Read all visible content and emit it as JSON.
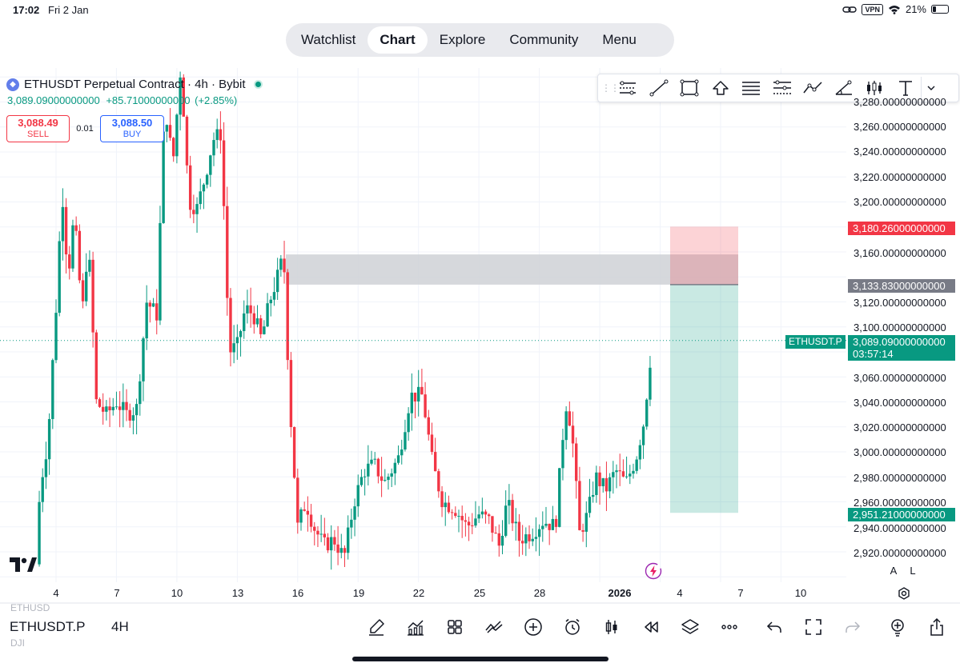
{
  "status_bar": {
    "time": "17:02",
    "date": "Fri 2 Jan",
    "vpn": "VPN",
    "battery": "21%"
  },
  "nav": {
    "tabs": [
      {
        "label": "Watchlist"
      },
      {
        "label": "Chart",
        "active": true
      },
      {
        "label": "Explore"
      },
      {
        "label": "Community"
      },
      {
        "label": "Menu"
      }
    ]
  },
  "legend": {
    "title": "ETHUSDT Perpetual Contract · 4h · Bybit",
    "last": "3,089.09000000000",
    "change": "+85.71000000000",
    "change_pct": "(+2.85%)"
  },
  "trade": {
    "sell_price": "3,088.49",
    "sell_label": "SELL",
    "spread": "0.01",
    "buy_price": "3,088.50",
    "buy_label": "BUY"
  },
  "drawing_tools": [
    "trend-angle-icon",
    "trend-line-icon",
    "rectangle-icon",
    "arrow-up-icon",
    "parallel-channel-icon",
    "fib-retracement-icon",
    "path-icon",
    "ray-icon",
    "pattern-icon",
    "text-icon"
  ],
  "price_axis": {
    "labels": [
      {
        "price": 3280,
        "text": "3,280.00000000000"
      },
      {
        "price": 3260,
        "text": "3,260.00000000000"
      },
      {
        "price": 3240,
        "text": "3,240.00000000000"
      },
      {
        "price": 3220,
        "text": "3,220.00000000000"
      },
      {
        "price": 3200,
        "text": "3,200.00000000000"
      },
      {
        "price": 3160,
        "text": "3,160.00000000000"
      },
      {
        "price": 3120,
        "text": "3,120.00000000000"
      },
      {
        "price": 3100,
        "text": "3,100.00000000000"
      },
      {
        "price": 3060,
        "text": "3,060.00000000000"
      },
      {
        "price": 3040,
        "text": "3,040.00000000000"
      },
      {
        "price": 3020,
        "text": "3,020.00000000000"
      },
      {
        "price": 3000,
        "text": "3,000.00000000000"
      },
      {
        "price": 2980,
        "text": "2,980.00000000000"
      },
      {
        "price": 2960,
        "text": "2,960.00000000000"
      },
      {
        "price": 2940,
        "text": "2,940.00000000000"
      },
      {
        "price": 2920,
        "text": "2,920.00000000000"
      }
    ],
    "stop_tag": "3,180.26000000000",
    "entry_tag": "3,133.83000000000",
    "target_tag": "2,951.21000000000",
    "current_symbol": "ETHUSDT.P",
    "current_price": "3,089.09000000000",
    "countdown": "03:57:14"
  },
  "time_axis": {
    "labels": [
      {
        "text": "4"
      },
      {
        "text": "7"
      },
      {
        "text": "10"
      },
      {
        "text": "13"
      },
      {
        "text": "16"
      },
      {
        "text": "19"
      },
      {
        "text": "22"
      },
      {
        "text": "25"
      },
      {
        "text": "28"
      },
      {
        "text": "2026",
        "bold": true
      },
      {
        "text": "4"
      },
      {
        "text": "7"
      },
      {
        "text": "10"
      }
    ]
  },
  "scale_buttons": {
    "auto": "A",
    "log": "L"
  },
  "bottom_bar": {
    "symbol": "ETHUSDT.P",
    "interval": "4H",
    "ghost_top": "ETHUSD",
    "ghost_bottom": "DJI"
  },
  "chart_data": {
    "type": "candlestick",
    "symbol": "ETHUSDT.P",
    "interval": "4h",
    "exchange": "Bybit",
    "ylim": [
      2905,
      3290
    ],
    "x_range_days": [
      "Dec 3",
      "Jan 10"
    ],
    "colors": {
      "up": "#089981",
      "down": "#f23645"
    },
    "zones": {
      "supply_zone": {
        "from": 3133.83,
        "to": 3158,
        "color": "#cfd1d6"
      },
      "short_position": {
        "entry": 3133.83,
        "stop": 3180.26,
        "target": 2951.21
      }
    },
    "current_price": 3089.09,
    "anchors": [
      {
        "day": 3.0,
        "price": 2910
      },
      {
        "day": 3.2,
        "price": 2970
      },
      {
        "day": 3.6,
        "price": 3010
      },
      {
        "day": 4.0,
        "price": 3115
      },
      {
        "day": 4.3,
        "price": 3210
      },
      {
        "day": 4.6,
        "price": 3140
      },
      {
        "day": 4.9,
        "price": 3190
      },
      {
        "day": 5.3,
        "price": 3110
      },
      {
        "day": 5.6,
        "price": 3170
      },
      {
        "day": 6.0,
        "price": 3040
      },
      {
        "day": 6.5,
        "price": 3030
      },
      {
        "day": 7.0,
        "price": 3040
      },
      {
        "day": 7.5,
        "price": 3030
      },
      {
        "day": 8.0,
        "price": 3035
      },
      {
        "day": 8.5,
        "price": 3120
      },
      {
        "day": 9.0,
        "price": 3110
      },
      {
        "day": 9.4,
        "price": 3280
      },
      {
        "day": 9.8,
        "price": 3230
      },
      {
        "day": 10.2,
        "price": 3310
      },
      {
        "day": 10.6,
        "price": 3200
      },
      {
        "day": 11.0,
        "price": 3195
      },
      {
        "day": 11.4,
        "price": 3220
      },
      {
        "day": 11.8,
        "price": 3250
      },
      {
        "day": 12.2,
        "price": 3255
      },
      {
        "day": 12.6,
        "price": 3080
      },
      {
        "day": 13.0,
        "price": 3085
      },
      {
        "day": 13.4,
        "price": 3115
      },
      {
        "day": 13.8,
        "price": 3110
      },
      {
        "day": 14.2,
        "price": 3090
      },
      {
        "day": 14.6,
        "price": 3120
      },
      {
        "day": 15.0,
        "price": 3140
      },
      {
        "day": 15.3,
        "price": 3158
      },
      {
        "day": 15.6,
        "price": 3040
      },
      {
        "day": 16.0,
        "price": 2940
      },
      {
        "day": 16.4,
        "price": 2960
      },
      {
        "day": 16.8,
        "price": 2940
      },
      {
        "day": 17.3,
        "price": 2925
      },
      {
        "day": 17.8,
        "price": 2930
      },
      {
        "day": 18.3,
        "price": 2915
      },
      {
        "day": 18.8,
        "price": 2960
      },
      {
        "day": 19.3,
        "price": 2985
      },
      {
        "day": 19.8,
        "price": 2990
      },
      {
        "day": 20.3,
        "price": 2975
      },
      {
        "day": 21.0,
        "price": 2995
      },
      {
        "day": 21.6,
        "price": 3045
      },
      {
        "day": 22.2,
        "price": 3045
      },
      {
        "day": 22.7,
        "price": 2990
      },
      {
        "day": 23.2,
        "price": 2960
      },
      {
        "day": 23.8,
        "price": 2955
      },
      {
        "day": 24.4,
        "price": 2940
      },
      {
        "day": 25.0,
        "price": 2950
      },
      {
        "day": 25.5,
        "price": 2945
      },
      {
        "day": 26.0,
        "price": 2925
      },
      {
        "day": 26.4,
        "price": 2960
      },
      {
        "day": 27.0,
        "price": 2930
      },
      {
        "day": 27.6,
        "price": 2935
      },
      {
        "day": 28.2,
        "price": 2945
      },
      {
        "day": 28.8,
        "price": 2940
      },
      {
        "day": 29.3,
        "price": 3040
      },
      {
        "day": 29.6,
        "price": 3020
      },
      {
        "day": 30.0,
        "price": 2935
      },
      {
        "day": 30.4,
        "price": 2950
      },
      {
        "day": 30.8,
        "price": 2980
      },
      {
        "day": 31.3,
        "price": 2970
      },
      {
        "day": 31.8,
        "price": 2985
      },
      {
        "day": 32.3,
        "price": 2975
      },
      {
        "day": 32.8,
        "price": 2995
      },
      {
        "day": 33.2,
        "price": 3025
      },
      {
        "day": 33.6,
        "price": 3089
      }
    ]
  }
}
